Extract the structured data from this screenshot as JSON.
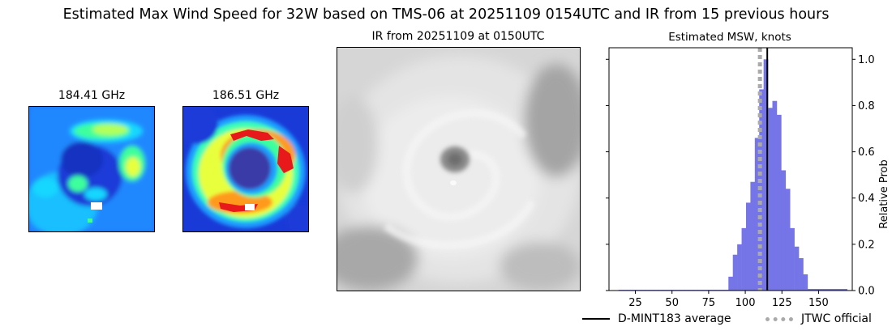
{
  "figure": {
    "title": "Estimated Max Wind Speed for 32W based on TMS-06 at 20251109 0154UTC and IR from 15 previous hours"
  },
  "panels": {
    "mw1": {
      "title": "184.41 GHz",
      "icon": "microwave-brightness-map"
    },
    "mw2": {
      "title": "186.51 GHz",
      "icon": "microwave-brightness-map"
    },
    "ir": {
      "title": "IR from 20251109 at 0150UTC",
      "icon": "infrared-satellite-image"
    }
  },
  "chart_data": {
    "type": "bar",
    "title": "Estimated MSW, knots",
    "xlabel": "",
    "ylabel": "Relative Prob",
    "xlim": [
      7,
      173
    ],
    "ylim": [
      0,
      1.05
    ],
    "xticks": [
      25,
      50,
      75,
      100,
      125,
      150
    ],
    "yticks": [
      0.0,
      0.2,
      0.4,
      0.6,
      0.8,
      1.0
    ],
    "ytick_labels": [
      "0.0",
      "0.2",
      "0.4",
      "0.6",
      "0.8",
      "1.0"
    ],
    "bar_width": 3,
    "bar_color": "#7575e8",
    "bars": [
      {
        "x": 15,
        "y": 0.003
      },
      {
        "x": 18,
        "y": 0.003
      },
      {
        "x": 21,
        "y": 0.003
      },
      {
        "x": 24,
        "y": 0.003
      },
      {
        "x": 27,
        "y": 0.003
      },
      {
        "x": 30,
        "y": 0.003
      },
      {
        "x": 33,
        "y": 0.003
      },
      {
        "x": 36,
        "y": 0.003
      },
      {
        "x": 39,
        "y": 0.003
      },
      {
        "x": 42,
        "y": 0.003
      },
      {
        "x": 45,
        "y": 0.003
      },
      {
        "x": 48,
        "y": 0.003
      },
      {
        "x": 51,
        "y": 0.003
      },
      {
        "x": 54,
        "y": 0.003
      },
      {
        "x": 57,
        "y": 0.003
      },
      {
        "x": 60,
        "y": 0.003
      },
      {
        "x": 63,
        "y": 0.003
      },
      {
        "x": 66,
        "y": 0.003
      },
      {
        "x": 69,
        "y": 0.003
      },
      {
        "x": 72,
        "y": 0.003
      },
      {
        "x": 75,
        "y": 0.003
      },
      {
        "x": 78,
        "y": 0.003
      },
      {
        "x": 81,
        "y": 0.003
      },
      {
        "x": 84,
        "y": 0.003
      },
      {
        "x": 87,
        "y": 0.003
      },
      {
        "x": 90,
        "y": 0.06
      },
      {
        "x": 93,
        "y": 0.155
      },
      {
        "x": 96,
        "y": 0.2
      },
      {
        "x": 99,
        "y": 0.27
      },
      {
        "x": 102,
        "y": 0.38
      },
      {
        "x": 105,
        "y": 0.47
      },
      {
        "x": 108,
        "y": 0.66
      },
      {
        "x": 111,
        "y": 0.87
      },
      {
        "x": 114,
        "y": 1.0
      },
      {
        "x": 117,
        "y": 0.79
      },
      {
        "x": 120,
        "y": 0.82
      },
      {
        "x": 123,
        "y": 0.76
      },
      {
        "x": 126,
        "y": 0.52
      },
      {
        "x": 129,
        "y": 0.44
      },
      {
        "x": 132,
        "y": 0.27
      },
      {
        "x": 135,
        "y": 0.19
      },
      {
        "x": 138,
        "y": 0.14
      },
      {
        "x": 141,
        "y": 0.07
      },
      {
        "x": 144,
        "y": 0.007
      },
      {
        "x": 147,
        "y": 0.007
      },
      {
        "x": 150,
        "y": 0.007
      },
      {
        "x": 153,
        "y": 0.007
      },
      {
        "x": 156,
        "y": 0.007
      },
      {
        "x": 159,
        "y": 0.007
      },
      {
        "x": 162,
        "y": 0.007
      },
      {
        "x": 165,
        "y": 0.007
      },
      {
        "x": 168,
        "y": 0.007
      }
    ],
    "vlines": [
      {
        "name": "D-MINT183 average",
        "x": 115,
        "color": "#000000",
        "style": "solid"
      },
      {
        "name": "JTWC official",
        "x": 110,
        "color": "#aaaaaa",
        "style": "dotted"
      }
    ],
    "legend_position": "below-right"
  }
}
